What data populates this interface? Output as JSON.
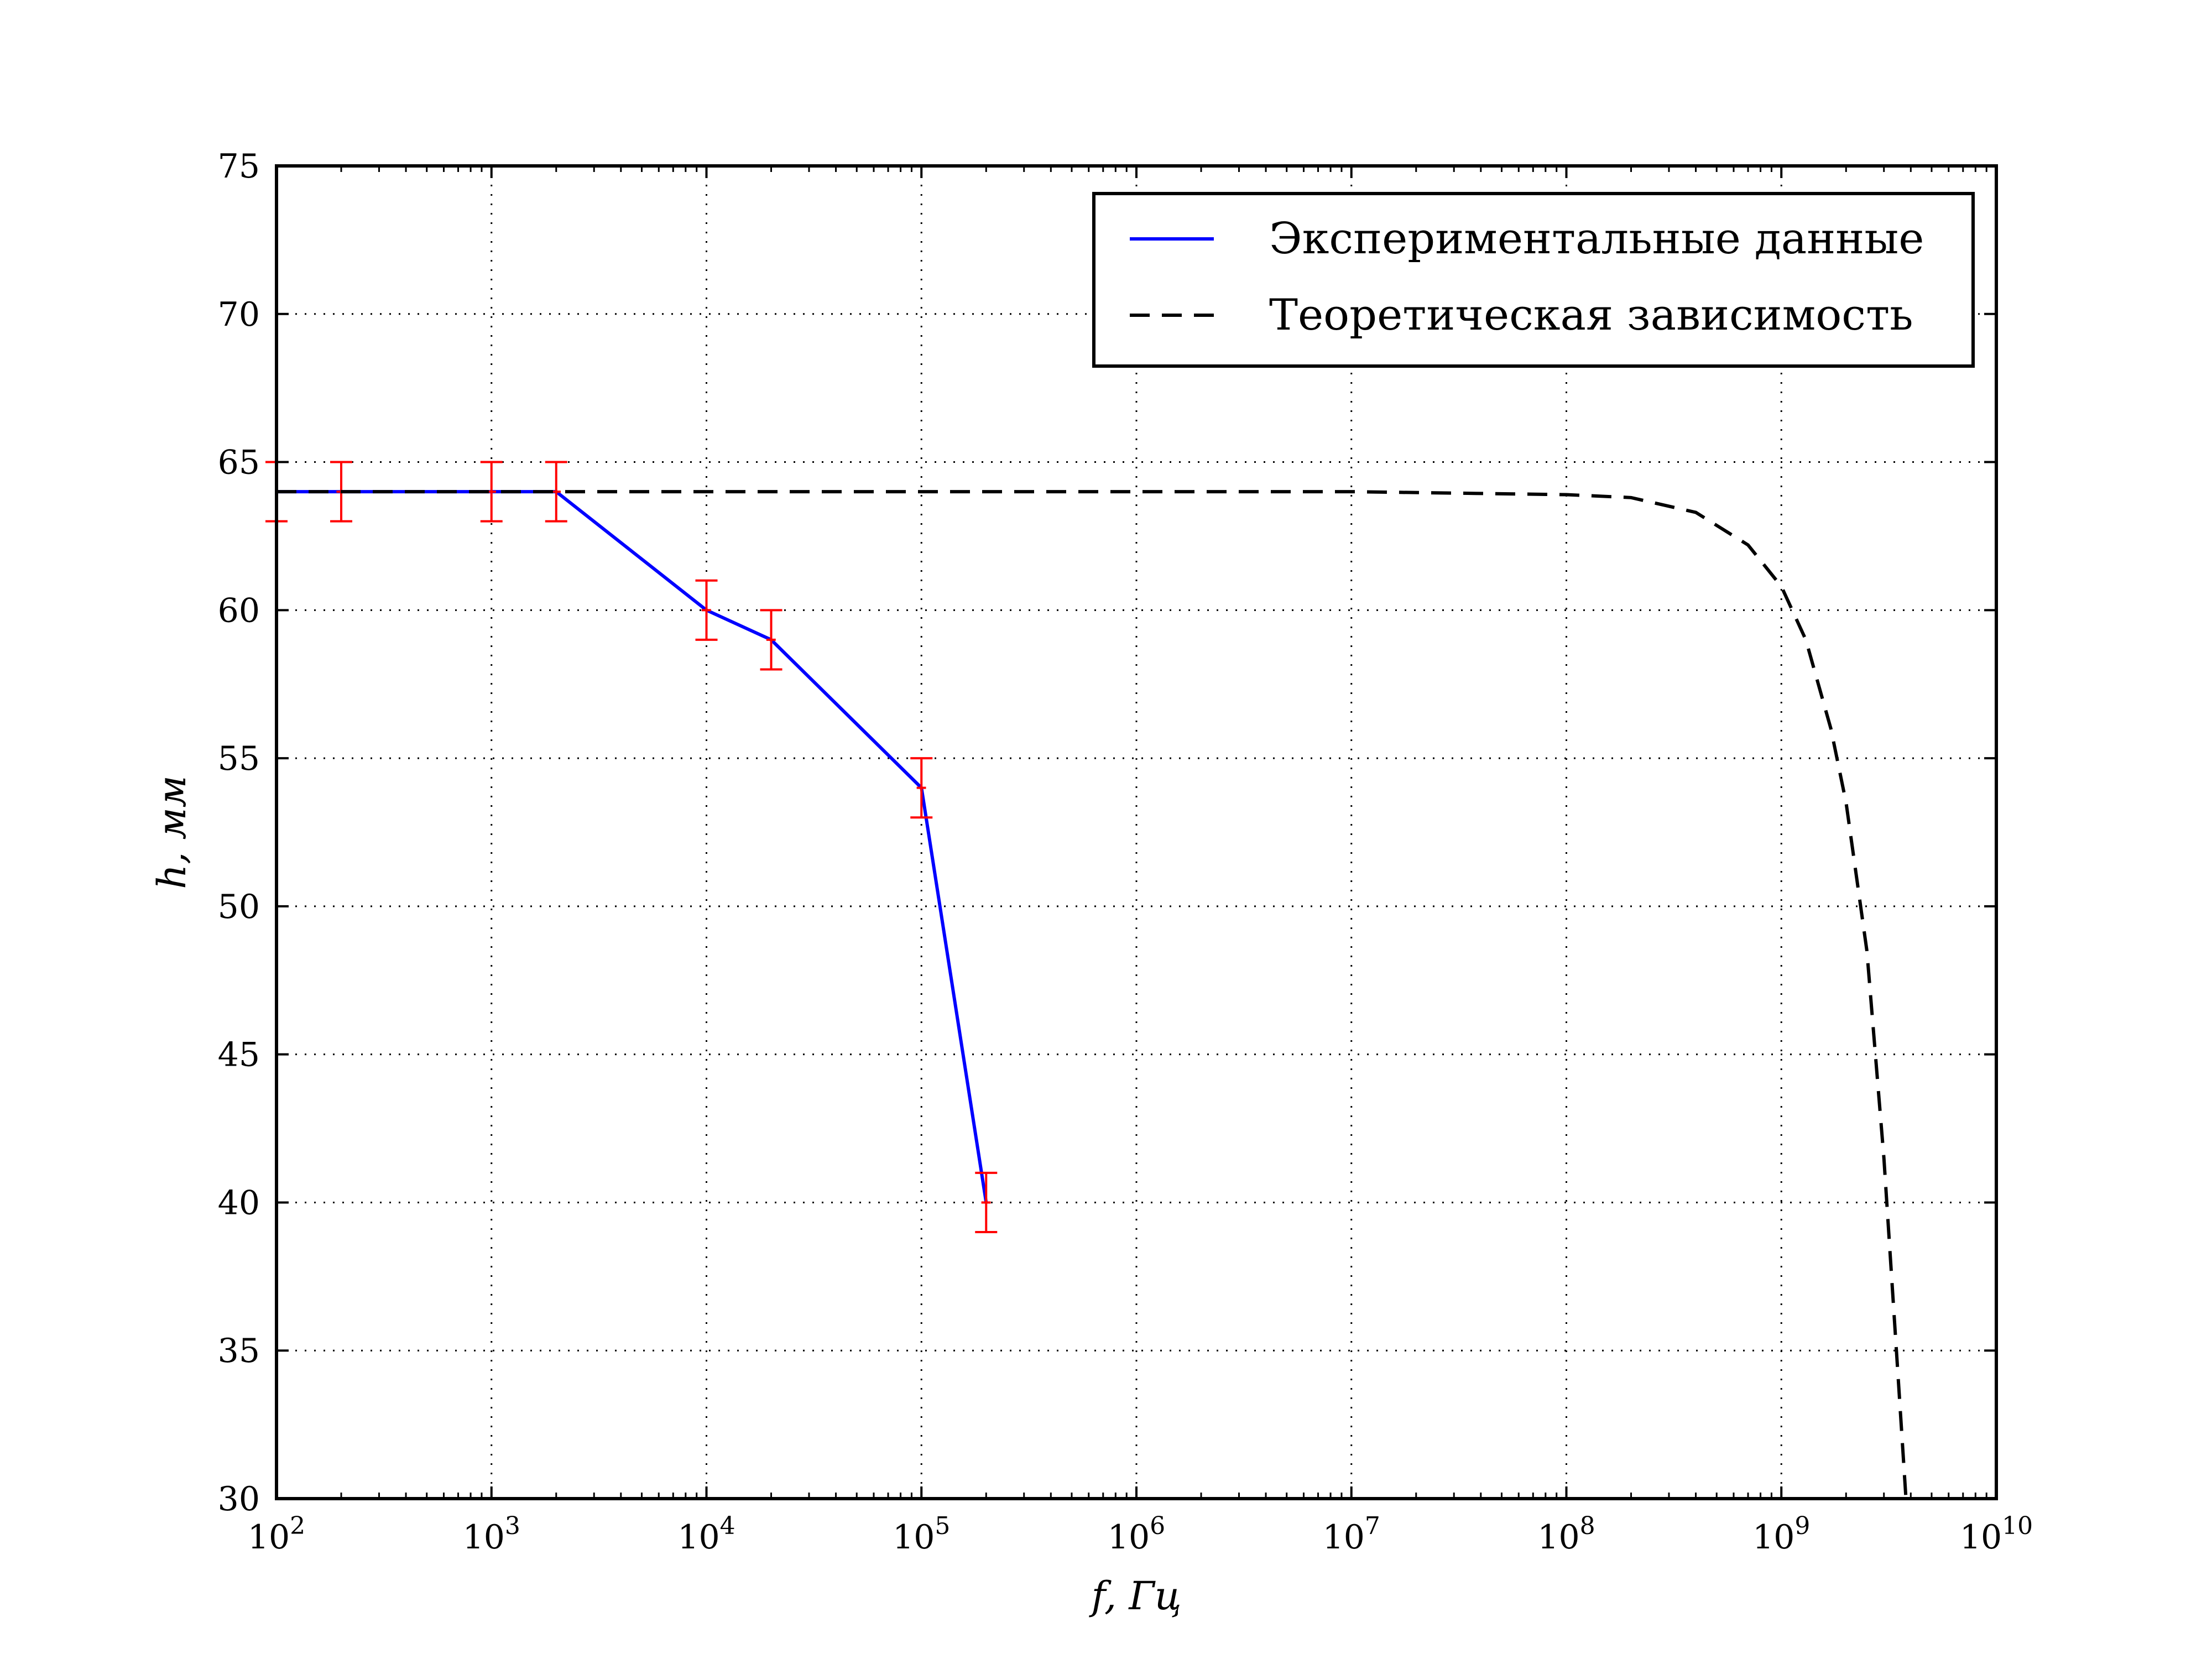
{
  "chart_data": {
    "type": "line",
    "xscale": "log",
    "xlabel": "f, Гц",
    "ylabel": "h, мм",
    "xlim": [
      100,
      10000000000
    ],
    "ylim": [
      30,
      75
    ],
    "grid": true,
    "grid_style": "dotted",
    "legend_position": "top-right",
    "x_ticks": [
      {
        "value": 100,
        "base": "10",
        "exp": "2"
      },
      {
        "value": 1000,
        "base": "10",
        "exp": "3"
      },
      {
        "value": 10000,
        "base": "10",
        "exp": "4"
      },
      {
        "value": 100000,
        "base": "10",
        "exp": "5"
      },
      {
        "value": 1000000,
        "base": "10",
        "exp": "6"
      },
      {
        "value": 10000000,
        "base": "10",
        "exp": "7"
      },
      {
        "value": 100000000,
        "base": "10",
        "exp": "8"
      },
      {
        "value": 1000000000,
        "base": "10",
        "exp": "9"
      },
      {
        "value": 10000000000,
        "base": "10",
        "exp": "10"
      }
    ],
    "y_ticks": [
      "30",
      "35",
      "40",
      "45",
      "50",
      "55",
      "60",
      "65",
      "70",
      "75"
    ],
    "series": [
      {
        "name": "Экспериментальные данные",
        "style": "solid",
        "color": "#0000ff",
        "x": [
          100,
          200,
          1000,
          2000,
          10000,
          20000,
          100000,
          200000
        ],
        "y": [
          64,
          64,
          64,
          64,
          60,
          59,
          54,
          40
        ],
        "y_error": 1,
        "x_error_fraction": 0.05,
        "error_color": "#ff0000"
      },
      {
        "name": "Теоретическая зависимость",
        "style": "dashed",
        "color": "#000000",
        "x": [
          100,
          1000,
          10000,
          100000,
          1000000,
          10000000,
          100000000,
          200000000,
          400000000,
          700000000,
          1000000000,
          1300000000,
          1700000000,
          2000000000,
          2500000000,
          3000000000,
          3500000000,
          3800000000
        ],
        "y": [
          64,
          64,
          64,
          64,
          64,
          64,
          63.9,
          63.8,
          63.3,
          62.2,
          60.8,
          59.0,
          56.0,
          53.5,
          48.5,
          41.5,
          34.0,
          30.0
        ]
      }
    ]
  }
}
